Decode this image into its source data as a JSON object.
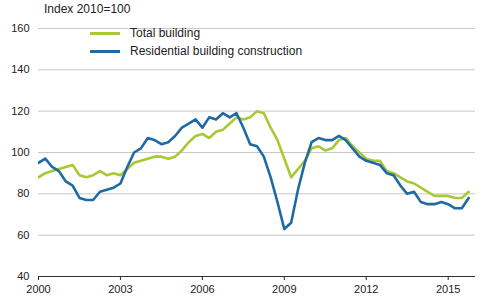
{
  "chart_data": {
    "type": "line",
    "subtitle": "Index 2010=100",
    "x": [
      2000,
      2000.25,
      2000.5,
      2000.75,
      2001,
      2001.25,
      2001.5,
      2001.75,
      2002,
      2002.25,
      2002.5,
      2002.75,
      2003,
      2003.25,
      2003.5,
      2003.75,
      2004,
      2004.25,
      2004.5,
      2004.75,
      2005,
      2005.25,
      2005.5,
      2005.75,
      2006,
      2006.25,
      2006.5,
      2006.75,
      2007,
      2007.25,
      2007.5,
      2007.75,
      2008,
      2008.25,
      2008.5,
      2008.75,
      2009,
      2009.25,
      2009.5,
      2009.75,
      2010,
      2010.25,
      2010.5,
      2010.75,
      2011,
      2011.25,
      2011.5,
      2011.75,
      2012,
      2012.25,
      2012.5,
      2012.75,
      2013,
      2013.25,
      2013.5,
      2013.75,
      2014,
      2014.25,
      2014.5,
      2014.75,
      2015,
      2015.25,
      2015.5,
      2015.75
    ],
    "series": [
      {
        "name": "Total building",
        "color": "#a9c934",
        "values": [
          88,
          90,
          91,
          92,
          93,
          94,
          89,
          88,
          89,
          91,
          89,
          90,
          89,
          92,
          95,
          96,
          97,
          98,
          98,
          97,
          98,
          101,
          105,
          108,
          109,
          107,
          110,
          111,
          114,
          117,
          116,
          117,
          120,
          119,
          112,
          106,
          97,
          88,
          92,
          96,
          102,
          103,
          101,
          102,
          106,
          107,
          103,
          100,
          97,
          96,
          96,
          91,
          90,
          88,
          86,
          85,
          83,
          81,
          79,
          79,
          79,
          78,
          78,
          81
        ]
      },
      {
        "name": "Residential building construction",
        "color": "#1f6aa5",
        "values": [
          95,
          97,
          93,
          91,
          86,
          84,
          78,
          77,
          77,
          81,
          82,
          83,
          85,
          93,
          100,
          102,
          107,
          106,
          104,
          105,
          108,
          112,
          114,
          116,
          112,
          117,
          116,
          119,
          117,
          119,
          112,
          104,
          103,
          98,
          88,
          76,
          63,
          66,
          82,
          95,
          105,
          107,
          106,
          106,
          108,
          106,
          102,
          98,
          96,
          95,
          94,
          90,
          89,
          84,
          80,
          81,
          76,
          75,
          75,
          76,
          75,
          73,
          73,
          78
        ]
      }
    ],
    "xlim": [
      2000,
      2016
    ],
    "xticks": [
      2000,
      2003,
      2006,
      2009,
      2012,
      2015
    ],
    "ylim": [
      40,
      160
    ],
    "yticks": [
      40,
      60,
      80,
      100,
      120,
      140,
      160
    ],
    "grid": true,
    "legend": "top-left"
  }
}
